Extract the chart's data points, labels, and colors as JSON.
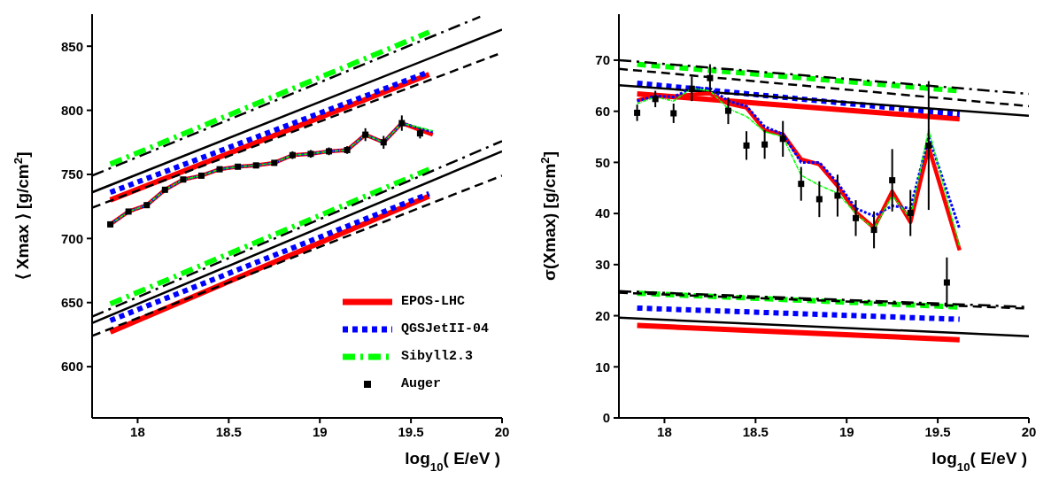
{
  "chart_data": [
    {
      "type": "line",
      "xlabel": "log$_{10}$( E/eV )",
      "ylabel": "⟨ Xmax ⟩ [g/cm$^{2}$]",
      "xlim": [
        17.75,
        20
      ],
      "xticks": [
        18,
        18.5,
        19,
        19.5,
        20
      ],
      "ylim": [
        560,
        875
      ],
      "yticks": [
        600,
        650,
        700,
        750,
        800,
        850
      ],
      "legend": "bottom right",
      "series": [
        {
          "name": "EPOS-LHC",
          "color": "#ff0000",
          "line_style": "solid",
          "x": [
            17.85,
            19.6
          ],
          "values": [
            730,
            828
          ]
        },
        {
          "name": "QGSJetII-04",
          "color": "#0000ff",
          "line_style": "dotted",
          "x": [
            17.85,
            19.6
          ],
          "values": [
            736,
            830
          ]
        },
        {
          "name": "Sibyll2.3",
          "color": "#00ff00",
          "line_style": "dashdot",
          "x": [
            17.85,
            19.6
          ],
          "values": [
            758,
            861
          ]
        },
        {
          "color": "#000000",
          "line_style": "solid",
          "x": [
            17.75,
            20
          ],
          "values": [
            736,
            863
          ]
        },
        {
          "color": "#000000",
          "line_style": "dashed",
          "x": [
            17.75,
            20
          ],
          "values": [
            724,
            845
          ]
        },
        {
          "color": "#000000",
          "line_style": "dashdot",
          "x": [
            17.75,
            19.88
          ],
          "values": [
            749,
            873
          ]
        },
        {
          "color": "#ff0000",
          "line_style": "solid",
          "x": [
            17.85,
            19.6
          ],
          "values": [
            627,
            733
          ]
        },
        {
          "color": "#0000ff",
          "line_style": "dotted",
          "x": [
            17.85,
            19.6
          ],
          "values": [
            636,
            735
          ]
        },
        {
          "color": "#00ff00",
          "line_style": "dashdot",
          "x": [
            17.85,
            19.6
          ],
          "values": [
            649,
            754
          ]
        },
        {
          "color": "#000000",
          "line_style": "solid",
          "x": [
            17.75,
            20
          ],
          "values": [
            634,
            768
          ]
        },
        {
          "color": "#000000",
          "line_style": "dashed",
          "x": [
            17.75,
            20
          ],
          "values": [
            624,
            749
          ]
        },
        {
          "color": "#000000",
          "line_style": "dashdot",
          "x": [
            17.75,
            20
          ],
          "values": [
            639,
            776
          ]
        },
        {
          "color": "#ff0000",
          "line_style": "solid",
          "x": [
            17.85,
            17.95,
            18.05,
            18.15,
            18.25,
            18.35,
            18.45,
            18.55,
            18.65,
            18.75,
            18.85,
            18.95,
            19.05,
            19.15,
            19.25,
            19.35,
            19.45,
            19.62
          ],
          "values": [
            711,
            721,
            726,
            738,
            746,
            749,
            754,
            756,
            757,
            759,
            765,
            766,
            768,
            769,
            781,
            775,
            790,
            781
          ]
        },
        {
          "color": "#0000ff",
          "line_style": "dotted",
          "x": [
            17.85,
            17.95,
            18.05,
            18.15,
            18.25,
            18.35,
            18.45,
            18.55,
            18.65,
            18.75,
            18.85,
            18.95,
            19.05,
            19.15,
            19.25,
            19.35,
            19.45,
            19.62
          ],
          "values": [
            711,
            721,
            726,
            738,
            746,
            749,
            754,
            756,
            757,
            759,
            765,
            766,
            768,
            769,
            781,
            775,
            790,
            783
          ]
        },
        {
          "color": "#00ff00",
          "line_style": "dashdot",
          "x": [
            17.85,
            17.95,
            18.05,
            18.15,
            18.25,
            18.35,
            18.45,
            18.55,
            18.65,
            18.75,
            18.85,
            18.95,
            19.05,
            19.15,
            19.25,
            19.35,
            19.45,
            19.62
          ],
          "values": [
            711,
            721,
            726,
            738,
            746,
            749,
            754,
            756,
            757,
            759,
            765,
            766,
            768,
            769,
            781,
            775,
            790,
            784
          ]
        },
        {
          "name": "Auger",
          "type": "scatter",
          "marker": "square",
          "color": "#000000",
          "x": [
            17.85,
            17.95,
            18.05,
            18.15,
            18.25,
            18.35,
            18.45,
            18.55,
            18.65,
            18.75,
            18.85,
            18.95,
            19.05,
            19.15,
            19.25,
            19.35,
            19.45,
            19.55
          ],
          "values": [
            711,
            721,
            726,
            738,
            746,
            749,
            754,
            756,
            757,
            759,
            765,
            766,
            768,
            769,
            781,
            775,
            790,
            782
          ],
          "errors": [
            2,
            2,
            2,
            2,
            2,
            2,
            2,
            2,
            2,
            2,
            3,
            3,
            3,
            3,
            5,
            5,
            6,
            4
          ]
        }
      ]
    },
    {
      "type": "line",
      "xlabel": "log$_{10}$( E/eV )",
      "ylabel": "σ(Xmax) [g/cm$^{2}$]",
      "xlim": [
        17.75,
        20
      ],
      "xticks": [
        18,
        18.5,
        19,
        19.5,
        20
      ],
      "ylim": [
        0,
        79
      ],
      "yticks": [
        0,
        10,
        20,
        30,
        40,
        50,
        60,
        70
      ],
      "series": [
        {
          "color": "#ff0000",
          "line_style": "solid",
          "x": [
            17.85,
            19.62
          ],
          "values": [
            63.4,
            58.5
          ]
        },
        {
          "color": "#0000ff",
          "line_style": "dotted",
          "x": [
            17.85,
            19.62
          ],
          "values": [
            65.5,
            59.4
          ]
        },
        {
          "color": "#00ff00",
          "line_style": "dashed",
          "x": [
            17.85,
            19.62
          ],
          "values": [
            69.2,
            64.0
          ]
        },
        {
          "color": "#000000",
          "line_style": "solid",
          "x": [
            17.75,
            20
          ],
          "values": [
            65.1,
            59.1
          ]
        },
        {
          "color": "#000000",
          "line_style": "dashed",
          "x": [
            17.75,
            20
          ],
          "values": [
            68.3,
            61.0
          ]
        },
        {
          "color": "#000000",
          "line_style": "dashdot",
          "x": [
            17.75,
            20
          ],
          "values": [
            70.0,
            63.4
          ]
        },
        {
          "color": "#ff0000",
          "line_style": "solid",
          "x": [
            17.85,
            19.62
          ],
          "values": [
            18.1,
            15.3
          ]
        },
        {
          "color": "#0000ff",
          "line_style": "dotted",
          "x": [
            17.85,
            19.62
          ],
          "values": [
            21.5,
            19.3
          ]
        },
        {
          "color": "#00ff00",
          "line_style": "dashed",
          "x": [
            17.85,
            19.62
          ],
          "values": [
            24.4,
            21.7
          ]
        },
        {
          "color": "#000000",
          "line_style": "solid",
          "x": [
            17.75,
            20
          ],
          "values": [
            19.6,
            16.0
          ]
        },
        {
          "color": "#000000",
          "line_style": "dashed",
          "x": [
            17.75,
            20
          ],
          "values": [
            24.5,
            21.4
          ]
        },
        {
          "color": "#000000",
          "line_style": "dashdot",
          "x": [
            17.75,
            20
          ],
          "values": [
            24.8,
            21.7
          ]
        },
        {
          "color": "#ff0000",
          "line_style": "solid",
          "x": [
            17.85,
            17.95,
            18.05,
            18.15,
            18.25,
            18.35,
            18.45,
            18.55,
            18.65,
            18.75,
            18.85,
            18.95,
            19.05,
            19.15,
            19.25,
            19.35,
            19.45,
            19.62
          ],
          "values": [
            62.1,
            63.2,
            62.8,
            63.3,
            63.5,
            61.5,
            60.7,
            56.3,
            55.5,
            50.6,
            49.6,
            45.4,
            40.3,
            37.2,
            44.3,
            38.3,
            53.0,
            32.8
          ]
        },
        {
          "color": "#0000ff",
          "line_style": "dotted",
          "x": [
            17.85,
            17.95,
            18.05,
            18.15,
            18.25,
            18.35,
            18.45,
            18.55,
            18.65,
            18.75,
            18.85,
            18.95,
            19.05,
            19.15,
            19.25,
            19.35,
            19.45,
            19.62
          ],
          "values": [
            62.0,
            63.0,
            62.8,
            64.5,
            64.5,
            62.0,
            61.0,
            57.0,
            55.5,
            50.0,
            50.0,
            46.0,
            41.0,
            39.5,
            41.5,
            41.0,
            55.0,
            37.0
          ]
        },
        {
          "color": "#00ff00",
          "line_style": "dashdot",
          "x": [
            17.85,
            17.95,
            18.05,
            18.15,
            18.25,
            18.35,
            18.45,
            18.55,
            18.65,
            18.75,
            18.85,
            18.95,
            19.05,
            19.15,
            19.25,
            19.35,
            19.45,
            19.62
          ],
          "values": [
            61.5,
            62.8,
            62.0,
            64.5,
            64.0,
            60.5,
            59.0,
            56.0,
            55.0,
            47.5,
            45.5,
            44.0,
            40.0,
            37.0,
            43.5,
            39.0,
            56.5,
            33.5
          ]
        },
        {
          "type": "scatter",
          "marker": "square",
          "color": "#000000",
          "x": [
            17.85,
            17.95,
            18.05,
            18.15,
            18.25,
            18.35,
            18.45,
            18.55,
            18.65,
            18.75,
            18.85,
            18.95,
            19.05,
            19.15,
            19.25,
            19.35,
            19.45,
            19.55
          ],
          "values": [
            59.7,
            62.4,
            59.6,
            64.4,
            66.5,
            60.1,
            53.3,
            53.5,
            54.6,
            45.8,
            42.8,
            43.5,
            39.1,
            36.8,
            46.5,
            40.1,
            53.3,
            26.5
          ],
          "errors": [
            1.6,
            1.6,
            1.9,
            2.4,
            2.7,
            2.6,
            2.8,
            2.8,
            3.5,
            3.3,
            3.5,
            4.1,
            3.5,
            3.6,
            6.1,
            4.5,
            12.6,
            4.9
          ]
        }
      ]
    }
  ]
}
